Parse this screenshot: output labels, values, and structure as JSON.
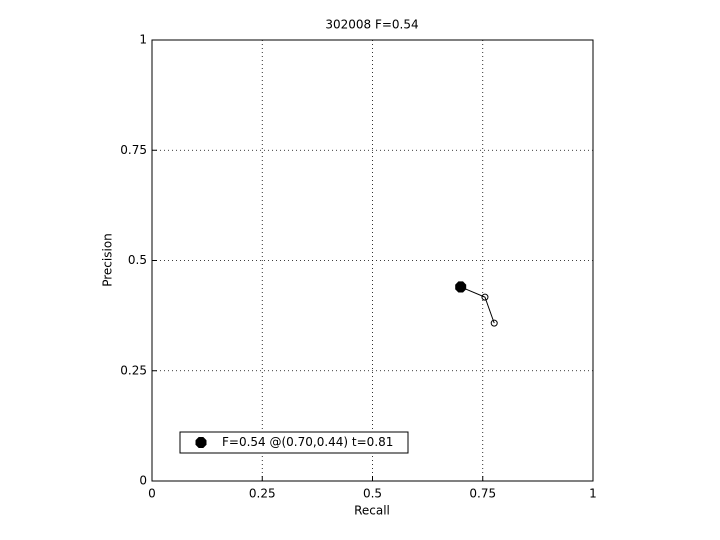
{
  "chart_data": {
    "type": "line",
    "title": "302008 F=0.54",
    "x_label": "Recall",
    "y_label": "Precision",
    "xlim": [
      0,
      1
    ],
    "ylim": [
      0,
      1
    ],
    "xticks": [
      0,
      0.25,
      0.5,
      0.75,
      1
    ],
    "yticks": [
      0,
      0.25,
      0.5,
      0.75,
      1
    ],
    "grid": true,
    "legend_position": "lower left",
    "series": [
      {
        "x": [
          0.7,
          0.755,
          0.776
        ],
        "values": [
          0.44,
          0.417,
          0.358
        ],
        "color": "#000000",
        "marker": "circle"
      },
      {
        "name": "F=0.54 @(0.70,0.44) t=0.81",
        "x": [
          0.7
        ],
        "values": [
          0.44
        ],
        "color": "#000000",
        "marker": "filled-octagon"
      }
    ]
  }
}
